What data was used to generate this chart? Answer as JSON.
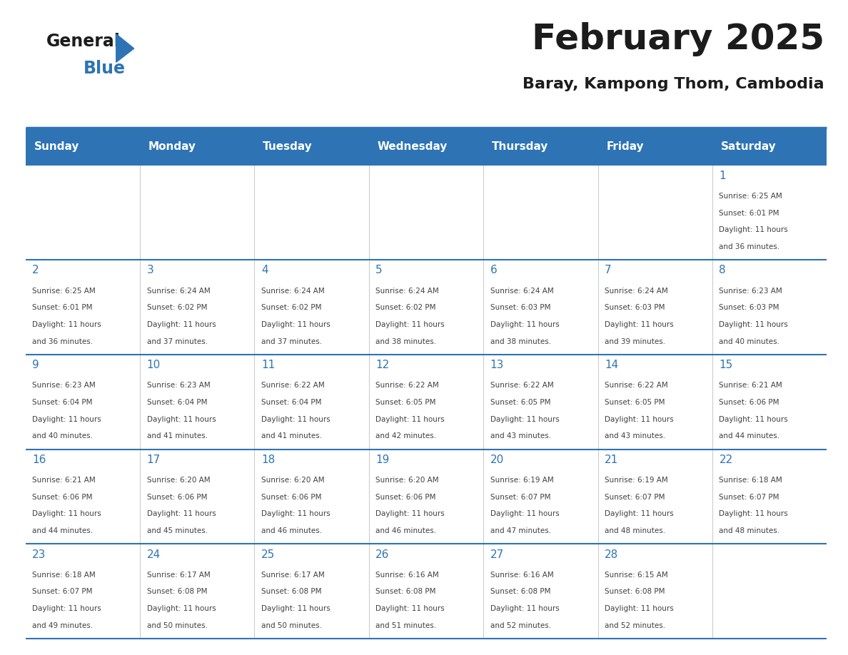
{
  "title": "February 2025",
  "subtitle": "Baray, Kampong Thom, Cambodia",
  "days_of_week": [
    "Sunday",
    "Monday",
    "Tuesday",
    "Wednesday",
    "Thursday",
    "Friday",
    "Saturday"
  ],
  "header_bg": "#2E74B5",
  "header_text": "#FFFFFF",
  "divider_color": "#2E74B5",
  "text_color": "#404040",
  "day_num_color": "#2E74B5",
  "info_fontsize": 7.5,
  "day_num_fontsize": 11,
  "header_fontsize": 11,
  "title_fontsize": 36,
  "subtitle_fontsize": 16,
  "calendar_data": [
    [
      {
        "day": null
      },
      {
        "day": null
      },
      {
        "day": null
      },
      {
        "day": null
      },
      {
        "day": null
      },
      {
        "day": null
      },
      {
        "day": 1,
        "sunrise": "6:25 AM",
        "sunset": "6:01 PM",
        "daylight": "11 hours and 36 minutes."
      }
    ],
    [
      {
        "day": 2,
        "sunrise": "6:25 AM",
        "sunset": "6:01 PM",
        "daylight": "11 hours and 36 minutes."
      },
      {
        "day": 3,
        "sunrise": "6:24 AM",
        "sunset": "6:02 PM",
        "daylight": "11 hours and 37 minutes."
      },
      {
        "day": 4,
        "sunrise": "6:24 AM",
        "sunset": "6:02 PM",
        "daylight": "11 hours and 37 minutes."
      },
      {
        "day": 5,
        "sunrise": "6:24 AM",
        "sunset": "6:02 PM",
        "daylight": "11 hours and 38 minutes."
      },
      {
        "day": 6,
        "sunrise": "6:24 AM",
        "sunset": "6:03 PM",
        "daylight": "11 hours and 38 minutes."
      },
      {
        "day": 7,
        "sunrise": "6:24 AM",
        "sunset": "6:03 PM",
        "daylight": "11 hours and 39 minutes."
      },
      {
        "day": 8,
        "sunrise": "6:23 AM",
        "sunset": "6:03 PM",
        "daylight": "11 hours and 40 minutes."
      }
    ],
    [
      {
        "day": 9,
        "sunrise": "6:23 AM",
        "sunset": "6:04 PM",
        "daylight": "11 hours and 40 minutes."
      },
      {
        "day": 10,
        "sunrise": "6:23 AM",
        "sunset": "6:04 PM",
        "daylight": "11 hours and 41 minutes."
      },
      {
        "day": 11,
        "sunrise": "6:22 AM",
        "sunset": "6:04 PM",
        "daylight": "11 hours and 41 minutes."
      },
      {
        "day": 12,
        "sunrise": "6:22 AM",
        "sunset": "6:05 PM",
        "daylight": "11 hours and 42 minutes."
      },
      {
        "day": 13,
        "sunrise": "6:22 AM",
        "sunset": "6:05 PM",
        "daylight": "11 hours and 43 minutes."
      },
      {
        "day": 14,
        "sunrise": "6:22 AM",
        "sunset": "6:05 PM",
        "daylight": "11 hours and 43 minutes."
      },
      {
        "day": 15,
        "sunrise": "6:21 AM",
        "sunset": "6:06 PM",
        "daylight": "11 hours and 44 minutes."
      }
    ],
    [
      {
        "day": 16,
        "sunrise": "6:21 AM",
        "sunset": "6:06 PM",
        "daylight": "11 hours and 44 minutes."
      },
      {
        "day": 17,
        "sunrise": "6:20 AM",
        "sunset": "6:06 PM",
        "daylight": "11 hours and 45 minutes."
      },
      {
        "day": 18,
        "sunrise": "6:20 AM",
        "sunset": "6:06 PM",
        "daylight": "11 hours and 46 minutes."
      },
      {
        "day": 19,
        "sunrise": "6:20 AM",
        "sunset": "6:06 PM",
        "daylight": "11 hours and 46 minutes."
      },
      {
        "day": 20,
        "sunrise": "6:19 AM",
        "sunset": "6:07 PM",
        "daylight": "11 hours and 47 minutes."
      },
      {
        "day": 21,
        "sunrise": "6:19 AM",
        "sunset": "6:07 PM",
        "daylight": "11 hours and 48 minutes."
      },
      {
        "day": 22,
        "sunrise": "6:18 AM",
        "sunset": "6:07 PM",
        "daylight": "11 hours and 48 minutes."
      }
    ],
    [
      {
        "day": 23,
        "sunrise": "6:18 AM",
        "sunset": "6:07 PM",
        "daylight": "11 hours and 49 minutes."
      },
      {
        "day": 24,
        "sunrise": "6:17 AM",
        "sunset": "6:08 PM",
        "daylight": "11 hours and 50 minutes."
      },
      {
        "day": 25,
        "sunrise": "6:17 AM",
        "sunset": "6:08 PM",
        "daylight": "11 hours and 50 minutes."
      },
      {
        "day": 26,
        "sunrise": "6:16 AM",
        "sunset": "6:08 PM",
        "daylight": "11 hours and 51 minutes."
      },
      {
        "day": 27,
        "sunrise": "6:16 AM",
        "sunset": "6:08 PM",
        "daylight": "11 hours and 52 minutes."
      },
      {
        "day": 28,
        "sunrise": "6:15 AM",
        "sunset": "6:08 PM",
        "daylight": "11 hours and 52 minutes."
      },
      {
        "day": null
      }
    ]
  ]
}
